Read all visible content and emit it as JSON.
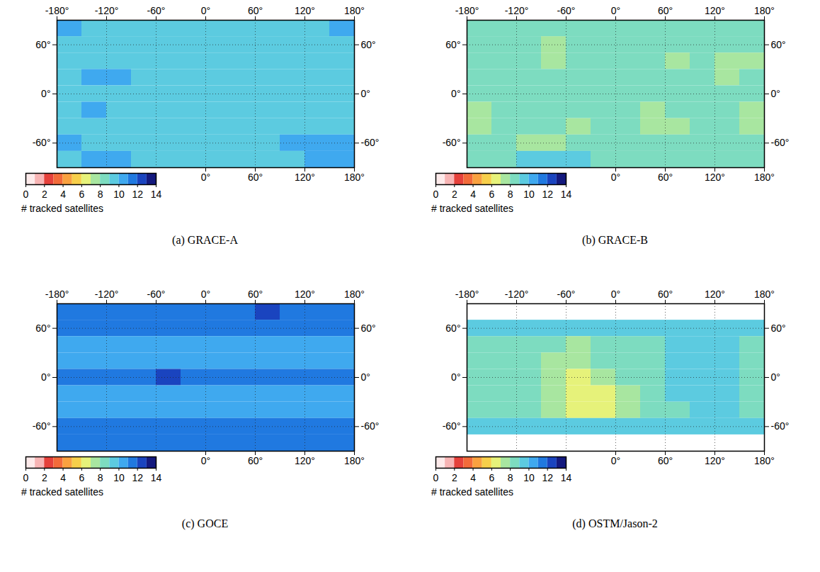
{
  "chart_data": [
    {
      "type": "heatmap",
      "caption": "(a) GRACE-A",
      "grid": true,
      "xlim": [
        -180,
        180
      ],
      "ylim": [
        -90,
        90
      ],
      "xticks": [
        {
          "value": -180,
          "label": "-180°"
        },
        {
          "value": -120,
          "label": "-120°"
        },
        {
          "value": -60,
          "label": "-60°"
        },
        {
          "value": 0,
          "label": "0°"
        },
        {
          "value": 60,
          "label": "60°"
        },
        {
          "value": 120,
          "label": "120°"
        },
        {
          "value": 180,
          "label": "180°"
        }
      ],
      "xticks_bottom": [
        {
          "value": 0,
          "label": "0°"
        },
        {
          "value": 60,
          "label": "60°"
        },
        {
          "value": 120,
          "label": "120°"
        },
        {
          "value": 180,
          "label": "180°"
        }
      ],
      "yticks": [
        {
          "value": -60,
          "label": "-60°"
        },
        {
          "value": 0,
          "label": "0°"
        },
        {
          "value": 60,
          "label": "60°"
        }
      ],
      "lon_edges": [
        -180,
        -150,
        -120,
        -90,
        -60,
        -30,
        0,
        30,
        60,
        90,
        120,
        150,
        180
      ],
      "lat_edges": [
        90,
        70,
        50,
        30,
        10,
        -10,
        -30,
        -50,
        -70,
        -90
      ],
      "cells": [
        [
          10,
          9,
          9,
          9,
          9,
          9,
          9,
          9,
          9,
          9,
          9,
          10
        ],
        [
          9,
          9,
          9,
          9,
          9,
          9,
          9,
          9,
          9,
          9,
          9,
          9
        ],
        [
          9,
          9,
          9,
          9,
          9,
          9,
          9,
          9,
          9,
          9,
          9,
          9
        ],
        [
          9,
          10,
          10,
          9,
          9,
          9,
          9,
          9,
          9,
          9,
          9,
          9
        ],
        [
          9,
          9,
          9,
          9,
          9,
          9,
          9,
          9,
          9,
          9,
          9,
          9
        ],
        [
          9,
          10,
          9,
          9,
          9,
          9,
          9,
          9,
          9,
          9,
          9,
          9
        ],
        [
          9,
          9,
          9,
          9,
          9,
          9,
          9,
          9,
          9,
          9,
          9,
          9
        ],
        [
          10,
          9,
          9,
          9,
          9,
          9,
          9,
          9,
          9,
          10,
          10,
          10
        ],
        [
          9,
          10,
          10,
          9,
          9,
          9,
          9,
          9,
          9,
          9,
          10,
          10
        ]
      ],
      "colorbar": {
        "label": "# tracked satellites",
        "range": [
          0,
          14
        ],
        "ticks": [
          0,
          2,
          4,
          6,
          8,
          10,
          12,
          14
        ]
      }
    },
    {
      "type": "heatmap",
      "caption": "(b) GRACE-B",
      "grid": true,
      "xlim": [
        -180,
        180
      ],
      "ylim": [
        -90,
        90
      ],
      "xticks": [
        {
          "value": -180,
          "label": "-180°"
        },
        {
          "value": -120,
          "label": "-120°"
        },
        {
          "value": -60,
          "label": "-60°"
        },
        {
          "value": 0,
          "label": "0°"
        },
        {
          "value": 60,
          "label": "60°"
        },
        {
          "value": 120,
          "label": "120°"
        },
        {
          "value": 180,
          "label": "180°"
        }
      ],
      "xticks_bottom": [
        {
          "value": 0,
          "label": "0°"
        },
        {
          "value": 60,
          "label": "60°"
        },
        {
          "value": 120,
          "label": "120°"
        },
        {
          "value": 180,
          "label": "180°"
        }
      ],
      "yticks": [
        {
          "value": -60,
          "label": "-60°"
        },
        {
          "value": 0,
          "label": "0°"
        },
        {
          "value": 60,
          "label": "60°"
        }
      ],
      "lon_edges": [
        -180,
        -150,
        -120,
        -90,
        -60,
        -30,
        0,
        30,
        60,
        90,
        120,
        150,
        180
      ],
      "lat_edges": [
        90,
        70,
        50,
        30,
        10,
        -10,
        -30,
        -50,
        -70,
        -90
      ],
      "cells": [
        [
          8,
          8,
          8,
          8,
          8,
          8,
          8,
          8,
          8,
          8,
          8,
          8
        ],
        [
          8,
          8,
          8,
          7,
          8,
          8,
          8,
          8,
          8,
          8,
          8,
          8
        ],
        [
          8,
          8,
          8,
          7,
          8,
          8,
          8,
          8,
          7,
          8,
          7,
          7
        ],
        [
          8,
          8,
          8,
          8,
          8,
          8,
          8,
          8,
          8,
          8,
          7,
          8
        ],
        [
          8,
          8,
          8,
          8,
          8,
          8,
          8,
          8,
          8,
          8,
          8,
          8
        ],
        [
          7,
          8,
          8,
          8,
          8,
          8,
          8,
          7,
          8,
          8,
          8,
          7
        ],
        [
          7,
          8,
          8,
          8,
          7,
          8,
          8,
          7,
          7,
          8,
          8,
          7
        ],
        [
          8,
          8,
          7,
          7,
          8,
          8,
          8,
          8,
          8,
          8,
          8,
          8
        ],
        [
          8,
          8,
          9,
          9,
          9,
          8,
          8,
          8,
          8,
          8,
          8,
          8
        ]
      ],
      "colorbar": {
        "label": "# tracked satellites",
        "range": [
          0,
          14
        ],
        "ticks": [
          0,
          2,
          4,
          6,
          8,
          10,
          12,
          14
        ]
      }
    },
    {
      "type": "heatmap",
      "caption": "(c) GOCE",
      "grid": true,
      "xlim": [
        -180,
        180
      ],
      "ylim": [
        -90,
        90
      ],
      "xticks": [
        {
          "value": -180,
          "label": "-180°"
        },
        {
          "value": -120,
          "label": "-120°"
        },
        {
          "value": -60,
          "label": "-60°"
        },
        {
          "value": 0,
          "label": "0°"
        },
        {
          "value": 60,
          "label": "60°"
        },
        {
          "value": 120,
          "label": "120°"
        },
        {
          "value": 180,
          "label": "180°"
        }
      ],
      "xticks_bottom": [
        {
          "value": 0,
          "label": "0°"
        },
        {
          "value": 60,
          "label": "60°"
        },
        {
          "value": 120,
          "label": "120°"
        },
        {
          "value": 180,
          "label": "180°"
        }
      ],
      "yticks": [
        {
          "value": -60,
          "label": "-60°"
        },
        {
          "value": 0,
          "label": "0°"
        },
        {
          "value": 60,
          "label": "60°"
        }
      ],
      "lon_edges": [
        -180,
        -150,
        -120,
        -90,
        -60,
        -30,
        0,
        30,
        60,
        90,
        120,
        150,
        180
      ],
      "lat_edges": [
        90,
        70,
        50,
        30,
        10,
        -10,
        -30,
        -50,
        -70,
        -90
      ],
      "cells": [
        [
          11,
          11,
          11,
          11,
          11,
          11,
          11,
          11,
          12,
          11,
          11,
          11
        ],
        [
          11,
          11,
          11,
          11,
          11,
          11,
          11,
          11,
          11,
          11,
          11,
          11
        ],
        [
          10,
          10,
          10,
          10,
          10,
          10,
          10,
          10,
          10,
          10,
          10,
          10
        ],
        [
          10,
          10,
          10,
          10,
          10,
          10,
          10,
          10,
          10,
          10,
          10,
          10
        ],
        [
          11,
          11,
          11,
          11,
          12,
          11,
          11,
          11,
          11,
          11,
          11,
          11
        ],
        [
          10,
          10,
          10,
          10,
          10,
          10,
          10,
          10,
          10,
          10,
          10,
          10
        ],
        [
          10,
          10,
          10,
          10,
          10,
          10,
          10,
          10,
          10,
          10,
          10,
          10
        ],
        [
          11,
          11,
          11,
          11,
          11,
          11,
          11,
          11,
          11,
          11,
          11,
          11
        ],
        [
          11,
          11,
          11,
          11,
          11,
          11,
          11,
          11,
          11,
          11,
          11,
          11
        ]
      ],
      "colorbar": {
        "label": "# tracked satellites",
        "range": [
          0,
          14
        ],
        "ticks": [
          0,
          2,
          4,
          6,
          8,
          10,
          12,
          14
        ]
      }
    },
    {
      "type": "heatmap",
      "caption": "(d) OSTM/Jason-2",
      "grid": true,
      "xlim": [
        -180,
        180
      ],
      "ylim": [
        -90,
        90
      ],
      "xticks": [
        {
          "value": -180,
          "label": "-180°"
        },
        {
          "value": -120,
          "label": "-120°"
        },
        {
          "value": -60,
          "label": "-60°"
        },
        {
          "value": 0,
          "label": "0°"
        },
        {
          "value": 60,
          "label": "60°"
        },
        {
          "value": 120,
          "label": "120°"
        },
        {
          "value": 180,
          "label": "180°"
        }
      ],
      "xticks_bottom": [
        {
          "value": 0,
          "label": "0°"
        },
        {
          "value": 60,
          "label": "60°"
        },
        {
          "value": 120,
          "label": "120°"
        },
        {
          "value": 180,
          "label": "180°"
        }
      ],
      "yticks": [
        {
          "value": -60,
          "label": "-60°"
        },
        {
          "value": 0,
          "label": "0°"
        },
        {
          "value": 60,
          "label": "60°"
        }
      ],
      "lon_edges": [
        -180,
        -150,
        -120,
        -90,
        -60,
        -30,
        0,
        30,
        60,
        90,
        120,
        150,
        180
      ],
      "lat_edges": [
        90,
        70,
        50,
        30,
        10,
        -10,
        -30,
        -50,
        -70,
        -90
      ],
      "cells": [
        [
          null,
          null,
          null,
          null,
          null,
          null,
          null,
          null,
          null,
          null,
          null,
          null
        ],
        [
          9,
          9,
          9,
          9,
          9,
          9,
          9,
          9,
          9,
          9,
          9,
          9
        ],
        [
          8,
          8,
          8,
          8,
          7,
          8,
          8,
          8,
          9,
          9,
          9,
          8
        ],
        [
          8,
          8,
          8,
          7,
          7,
          8,
          8,
          8,
          9,
          9,
          9,
          8
        ],
        [
          8,
          8,
          8,
          7,
          6,
          7,
          8,
          8,
          9,
          9,
          9,
          8
        ],
        [
          8,
          8,
          8,
          7,
          6,
          6,
          7,
          8,
          9,
          9,
          9,
          8
        ],
        [
          8,
          8,
          8,
          7,
          6,
          6,
          7,
          8,
          8,
          9,
          9,
          8
        ],
        [
          9,
          9,
          9,
          9,
          9,
          9,
          9,
          9,
          9,
          9,
          9,
          9
        ],
        [
          null,
          null,
          null,
          null,
          null,
          null,
          null,
          null,
          null,
          null,
          null,
          null
        ]
      ],
      "colorbar": {
        "label": "# tracked satellites",
        "range": [
          0,
          14
        ],
        "ticks": [
          0,
          2,
          4,
          6,
          8,
          10,
          12,
          14
        ]
      }
    }
  ]
}
